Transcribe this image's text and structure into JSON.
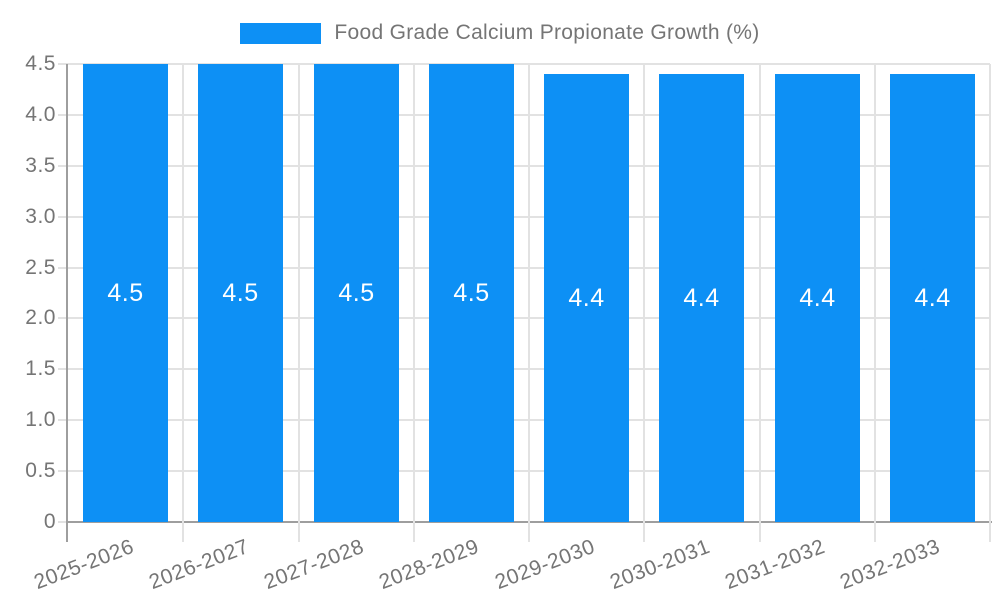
{
  "legend": {
    "label": "Food Grade Calcium Propionate Growth (%)"
  },
  "chart_data": {
    "type": "bar",
    "series_label": "Food Grade Calcium Propionate Growth (%)",
    "categories": [
      "2025-2026",
      "2026-2027",
      "2027-2028",
      "2028-2029",
      "2029-2030",
      "2030-2031",
      "2031-2032",
      "2032-2033"
    ],
    "values": [
      4.5,
      4.5,
      4.5,
      4.5,
      4.4,
      4.4,
      4.4,
      4.4
    ],
    "value_labels": [
      "4.5",
      "4.5",
      "4.5",
      "4.5",
      "4.4",
      "4.4",
      "4.4",
      "4.4"
    ],
    "y_ticks": [
      0,
      0.5,
      1.0,
      1.5,
      2.0,
      2.5,
      3.0,
      3.5,
      4.0,
      4.5
    ],
    "y_tick_labels": [
      "0",
      "0.5",
      "1.0",
      "1.5",
      "2.0",
      "2.5",
      "3.0",
      "3.5",
      "4.0",
      "4.5"
    ],
    "ylim": [
      0,
      4.5
    ],
    "xlabel": "",
    "ylabel": "",
    "grid": true,
    "legend_position": "top",
    "x_tick_rotation_deg": -21,
    "bar_color": "#0d90f5",
    "value_label_color": "#ffffff",
    "tick_label_color": "#757575",
    "grid_color": "#e2e2e2",
    "axis_color": "#9e9e9e"
  }
}
